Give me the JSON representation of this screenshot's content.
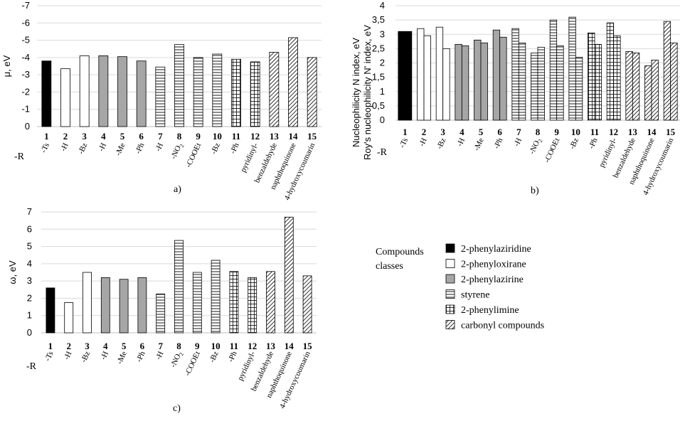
{
  "chart_data": [
    {
      "type": "bar",
      "panel_label": "a)",
      "ylabel": "μ, eV",
      "ylim": [
        0,
        -7
      ],
      "yticks": [
        0,
        -1,
        -2,
        -3,
        -4,
        -5,
        -6,
        -7
      ],
      "ytick_labels": [
        "0",
        "-1",
        "-2",
        "-3",
        "-4",
        "-5",
        "-6",
        "-7"
      ],
      "categories": [
        "1",
        "2",
        "3",
        "4",
        "5",
        "6",
        "7",
        "8",
        "9",
        "10",
        "11",
        "12",
        "13",
        "14",
        "15"
      ],
      "substituents": [
        "-Ts",
        "-H",
        "-Bz",
        "-H",
        "-Me",
        "-Ph",
        "-H",
        "-NO2",
        "-COOEt",
        "-Bz",
        "-Ph",
        "pyridinyl-",
        "benzaldehyde",
        "naphthoquinone",
        "4-hydroxycoumarin"
      ],
      "r_label": "-R",
      "series": [
        {
          "name": "μ",
          "values": [
            -3.8,
            -3.35,
            -4.1,
            -4.1,
            -4.05,
            -3.8,
            -3.45,
            -4.75,
            -4.0,
            -4.2,
            -3.9,
            -3.75,
            -4.3,
            -5.15,
            -4.0
          ]
        }
      ]
    },
    {
      "type": "bar",
      "panel_label": "b)",
      "ylabel_lines": [
        "Nucleophilicity N index, eV",
        "Roy's nucleophilicity N' index, eV"
      ],
      "ylim": [
        0,
        4
      ],
      "yticks": [
        0,
        0.5,
        1,
        1.5,
        2,
        2.5,
        3,
        3.5,
        4
      ],
      "ytick_labels": [
        "0",
        "0,5",
        "1",
        "1,5",
        "2",
        "2,5",
        "3",
        "3,5",
        "4"
      ],
      "categories": [
        "1",
        "2",
        "3",
        "4",
        "5",
        "6",
        "7",
        "8",
        "9",
        "10",
        "11",
        "12",
        "13",
        "14",
        "15"
      ],
      "substituents": [
        "-Ts",
        "-H",
        "-Bz",
        "-H",
        "-Me",
        "-Ph",
        "-H",
        "-NO2",
        "-COOEt",
        "-Bz",
        "-Ph",
        "pyridinyl-",
        "benzaldehyde",
        "naphthoquinone",
        "4-hydroxycoumarin"
      ],
      "r_label": "-R",
      "series": [
        {
          "name": "N",
          "values": [
            3.1,
            3.2,
            3.25,
            2.65,
            2.8,
            3.15,
            3.2,
            2.35,
            3.5,
            3.6,
            3.05,
            3.4,
            2.4,
            1.9,
            3.45
          ]
        },
        {
          "name": "N'",
          "values": [
            3.1,
            2.95,
            2.5,
            2.6,
            2.7,
            2.9,
            2.7,
            2.55,
            2.6,
            2.2,
            2.65,
            2.95,
            2.35,
            2.1,
            2.7
          ]
        }
      ]
    },
    {
      "type": "bar",
      "panel_label": "c)",
      "ylabel": "ω, eV",
      "ylim": [
        0,
        7
      ],
      "yticks": [
        0,
        1,
        2,
        3,
        4,
        5,
        6,
        7
      ],
      "ytick_labels": [
        "0",
        "1",
        "2",
        "3",
        "4",
        "5",
        "6",
        "7"
      ],
      "categories": [
        "1",
        "2",
        "3",
        "4",
        "5",
        "6",
        "7",
        "8",
        "9",
        "10",
        "11",
        "12",
        "13",
        "14",
        "15"
      ],
      "substituents": [
        "-Ts",
        "-H",
        "-Bz",
        "-H",
        "-Me",
        "-Ph",
        "-H",
        "-NO2",
        "-COOEt",
        "-Bz",
        "-Ph",
        "pyridinyl-",
        "benzaldehyde",
        "naphthoquinone",
        "4-hydroxycoumarin"
      ],
      "r_label": "-R",
      "series": [
        {
          "name": "ω",
          "values": [
            2.6,
            1.75,
            3.5,
            3.2,
            3.1,
            3.2,
            2.25,
            5.35,
            3.5,
            4.2,
            3.55,
            3.2,
            3.55,
            6.7,
            3.3
          ]
        }
      ]
    }
  ],
  "legend": {
    "title_lines": [
      "Compounds",
      "classes"
    ],
    "items": [
      {
        "label": "2-phenylaziridine",
        "pattern": "solid-black"
      },
      {
        "label": "2-phenyloxirane",
        "pattern": "white"
      },
      {
        "label": "2-phenylazirine",
        "pattern": "gray"
      },
      {
        "label": "styrene",
        "pattern": "horizontal-lines"
      },
      {
        "label": "2-phenylimine",
        "pattern": "grid"
      },
      {
        "label": "carbonyl compounds",
        "pattern": "diagonal-lines"
      }
    ]
  },
  "compound_classes": [
    "2-phenylaziridine",
    "2-phenyloxirane",
    "2-phenyloxirane",
    "2-phenylazirine",
    "2-phenylazirine",
    "2-phenylazirine",
    "styrene",
    "styrene",
    "styrene",
    "styrene",
    "2-phenylimine",
    "2-phenylimine",
    "carbonyl compounds",
    "carbonyl compounds",
    "carbonyl compounds"
  ],
  "colors": {
    "black": "#000000",
    "gray": "#a6a6a6",
    "white": "#ffffff",
    "grid": "#d9d9d9"
  }
}
